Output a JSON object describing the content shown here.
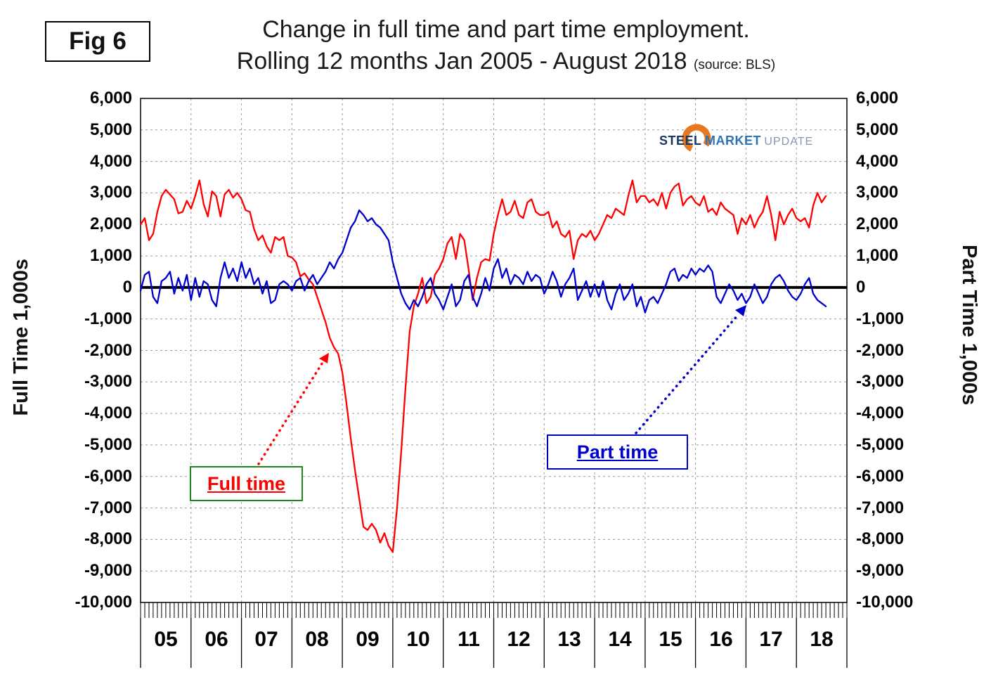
{
  "fig_label": "Fig 6",
  "title_line1": "Change in full time and part time employment.",
  "title_line2": "Rolling 12 months Jan 2005 - August 2018",
  "source": "(source: BLS)",
  "left_axis_title": "Full Time 1,000s",
  "right_axis_title": "Part Time 1,000s",
  "annotations": {
    "full_time_label": "Full time",
    "part_time_label": "Part time"
  },
  "logo": {
    "word1": "STEEL",
    "word2": "MARKET",
    "word3": "UPDATE"
  },
  "colors": {
    "full_time": "#ff0000",
    "part_time": "#0000cc",
    "zero_line": "#000000",
    "grid": "#9a9a9a",
    "logo_orange": "#e87722",
    "logo_navy": "#17375e",
    "logo_blue": "#2e74b5",
    "logo_gray": "#8496b0",
    "full_time_box_border": "#1c8a1c"
  },
  "chart_data": {
    "type": "line",
    "title": "Change in full time and part time employment. Rolling 12 months Jan 2005 - August 2018",
    "xlabel": "Year",
    "ylabel_left": "Full Time 1,000s",
    "ylabel_right": "Part Time 1,000s",
    "x_start": "2005-01",
    "x_end": "2018-08",
    "x_frequency": "monthly",
    "year_labels": [
      "05",
      "06",
      "07",
      "08",
      "09",
      "10",
      "11",
      "12",
      "13",
      "14",
      "15",
      "16",
      "17",
      "18"
    ],
    "ylim": [
      -10000,
      6000
    ],
    "ytick_step": 1000,
    "ytick_labels": [
      "6,000",
      "5,000",
      "4,000",
      "3,000",
      "2,000",
      "1,000",
      "0",
      "-1,000",
      "-2,000",
      "-3,000",
      "-4,000",
      "-5,000",
      "-6,000",
      "-7,000",
      "-8,000",
      "-9,000",
      "-10,000"
    ],
    "grid": "dashed",
    "zero_line": true,
    "legend_position": "annotation-boxes",
    "series": [
      {
        "name": "Full time",
        "axis": "left",
        "color": "#ff0000",
        "values": [
          2000,
          2200,
          1500,
          1700,
          2400,
          2900,
          3100,
          2950,
          2800,
          2350,
          2400,
          2750,
          2500,
          2900,
          3400,
          2650,
          2250,
          3050,
          2900,
          2250,
          2950,
          3100,
          2850,
          3000,
          2800,
          2450,
          2400,
          1850,
          1500,
          1650,
          1300,
          1100,
          1600,
          1500,
          1600,
          1000,
          950,
          800,
          350,
          450,
          250,
          100,
          -300,
          -700,
          -1100,
          -1600,
          -1900,
          -2100,
          -2700,
          -3700,
          -4800,
          -5800,
          -6700,
          -7600,
          -7700,
          -7500,
          -7700,
          -8100,
          -7800,
          -8200,
          -8400,
          -7000,
          -5200,
          -3200,
          -1400,
          -600,
          -200,
          300,
          -500,
          -300,
          400,
          600,
          900,
          1400,
          1600,
          900,
          1700,
          1500,
          600,
          -400,
          300,
          800,
          900,
          850,
          1700,
          2300,
          2800,
          2300,
          2400,
          2750,
          2300,
          2200,
          2700,
          2800,
          2400,
          2300,
          2300,
          2400,
          1900,
          2100,
          1700,
          1600,
          1800,
          900,
          1500,
          1700,
          1600,
          1800,
          1500,
          1700,
          2000,
          2300,
          2200,
          2500,
          2400,
          2300,
          2900,
          3400,
          2700,
          2900,
          2900,
          2700,
          2800,
          2600,
          3000,
          2500,
          3000,
          3200,
          3300,
          2600,
          2800,
          2900,
          2700,
          2600,
          2900,
          2400,
          2500,
          2300,
          2700,
          2500,
          2400,
          2300,
          1700,
          2200,
          2000,
          2300,
          1900,
          2200,
          2400,
          2900,
          2300,
          1500,
          2400,
          2000,
          2300,
          2500,
          2200,
          2100,
          2200,
          1900,
          2600,
          3000,
          2700,
          2900
        ]
      },
      {
        "name": "Part time",
        "axis": "right",
        "color": "#0000cc",
        "values": [
          -100,
          400,
          500,
          -300,
          -500,
          200,
          300,
          500,
          -200,
          300,
          -100,
          400,
          -400,
          300,
          -300,
          200,
          100,
          -400,
          -600,
          300,
          800,
          300,
          600,
          200,
          800,
          300,
          600,
          100,
          300,
          -200,
          200,
          -500,
          -400,
          100,
          200,
          100,
          -100,
          200,
          300,
          -100,
          200,
          400,
          100,
          300,
          500,
          800,
          600,
          900,
          1100,
          1500,
          1900,
          2100,
          2450,
          2300,
          2100,
          2200,
          2000,
          1900,
          1700,
          1500,
          800,
          300,
          -200,
          -500,
          -700,
          -400,
          -600,
          -300,
          100,
          300,
          -200,
          -400,
          -700,
          -300,
          100,
          -600,
          -400,
          200,
          400,
          -300,
          -600,
          -200,
          300,
          -100,
          600,
          900,
          300,
          600,
          100,
          400,
          300,
          100,
          500,
          200,
          400,
          300,
          -200,
          100,
          500,
          200,
          -300,
          100,
          300,
          600,
          -400,
          -100,
          200,
          -300,
          100,
          -300,
          200,
          -400,
          -700,
          -200,
          100,
          -400,
          -200,
          100,
          -600,
          -300,
          -800,
          -400,
          -300,
          -500,
          -200,
          100,
          500,
          600,
          200,
          400,
          300,
          600,
          400,
          600,
          500,
          700,
          500,
          -300,
          -500,
          -200,
          100,
          -100,
          -400,
          -200,
          -500,
          -300,
          100,
          -200,
          -500,
          -300,
          100,
          300,
          400,
          200,
          -100,
          -300,
          -400,
          -200,
          100,
          300,
          -200,
          -400,
          -500,
          -600
        ]
      }
    ]
  }
}
